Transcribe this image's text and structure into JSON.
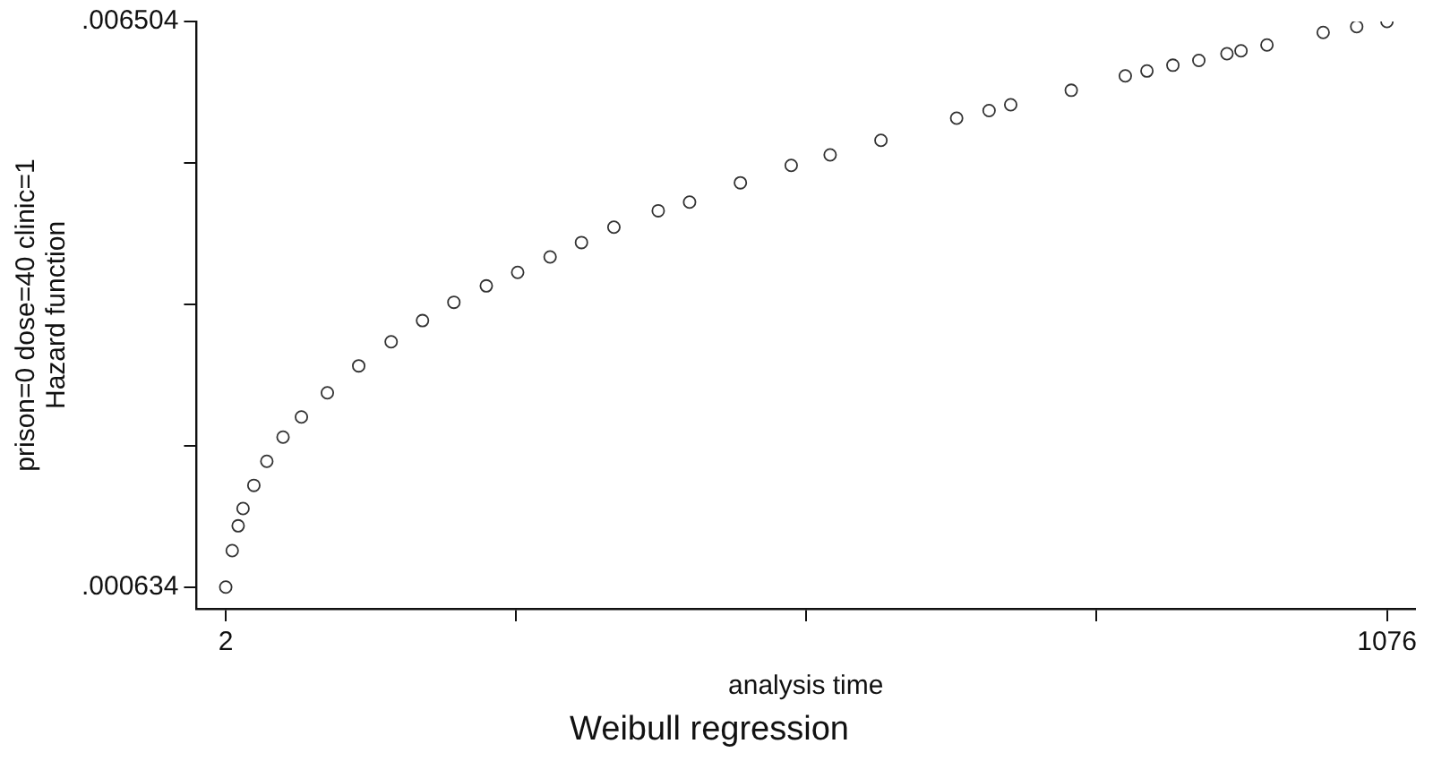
{
  "chart_data": {
    "type": "scatter",
    "title": "Weibull regression",
    "xlabel": "analysis time",
    "ylabel": "prison=0 dose=40 clinic=1\nHazard function",
    "marker": "circle",
    "grid": false,
    "legend": false,
    "xlim": [
      -25,
      1102
    ],
    "ylim": [
      0.00041,
      0.006504
    ],
    "xticks": [
      2,
      {
        "value": 270.5,
        "label": null
      },
      {
        "value": 539,
        "label": null
      },
      {
        "value": 807.5,
        "label": null
      },
      1076
    ],
    "yticks": [
      {
        "value": 0.000634,
        "label": ".000634"
      },
      {
        "value": 0.0021015,
        "label": null
      },
      {
        "value": 0.003569,
        "label": null
      },
      {
        "value": 0.0050365,
        "label": null
      },
      {
        "value": 0.006504,
        "label": ".006504"
      }
    ],
    "series": [
      {
        "color": "#333333",
        "x": [
          2,
          8,
          13.5,
          18,
          28,
          40,
          55,
          72,
          96,
          125,
          155,
          184,
          213,
          243,
          272,
          302,
          331,
          361,
          402,
          431,
          478,
          525,
          561,
          608,
          678,
          708,
          728,
          784,
          834,
          854,
          878,
          902,
          928,
          941,
          965,
          1017,
          1048,
          1076
        ],
        "values": [
          0.000634,
          0.001013,
          0.00127,
          0.00145,
          0.00169,
          0.00194,
          0.00219,
          0.0024,
          0.00265,
          0.00293,
          0.00318,
          0.0034,
          0.00359,
          0.00376,
          0.0039,
          0.00406,
          0.00421,
          0.00437,
          0.00454,
          0.00463,
          0.00483,
          0.00501,
          0.00512,
          0.00527,
          0.0055,
          0.00558,
          0.00564,
          0.00579,
          0.00594,
          0.00599,
          0.00605,
          0.0061,
          0.00617,
          0.0062,
          0.00626,
          0.00639,
          0.00645,
          0.006504
        ]
      }
    ]
  }
}
